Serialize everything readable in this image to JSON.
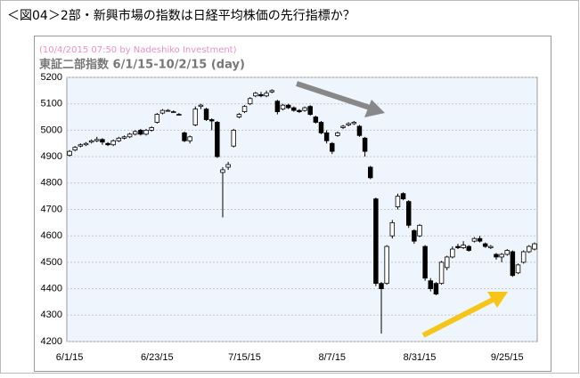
{
  "header": {
    "title": "＜図04＞2部・新興市場の指数は日経平均株価の先行指標か？"
  },
  "chart_data": {
    "type": "candlestick",
    "subtitle": "(10/4/2015 07:50 by Nadeshiko Investment)",
    "title": "東証二部指数  6/1/15-10/2/15 (day)",
    "categories": [
      "6/1/15",
      null,
      null,
      null,
      null,
      null,
      null,
      null,
      null,
      null,
      null,
      null,
      null,
      null,
      null,
      null,
      "6/23/15",
      null,
      null,
      null,
      null,
      null,
      null,
      null,
      null,
      null,
      null,
      null,
      null,
      null,
      null,
      null,
      "7/15/15",
      null,
      null,
      null,
      null,
      null,
      null,
      null,
      null,
      null,
      null,
      null,
      null,
      null,
      null,
      null,
      "8/7/15",
      null,
      null,
      null,
      null,
      null,
      null,
      null,
      null,
      null,
      null,
      null,
      null,
      null,
      null,
      null,
      "8/31/15",
      null,
      null,
      null,
      null,
      null,
      null,
      null,
      null,
      null,
      null,
      null,
      null,
      null,
      null,
      null,
      "9/25/15",
      null,
      null,
      null,
      null,
      null
    ],
    "open": [
      4905,
      4925,
      4940,
      4945,
      4955,
      4960,
      4965,
      4950,
      4945,
      4960,
      4970,
      4975,
      4985,
      5000,
      4985,
      5000,
      5030,
      5065,
      5075,
      5070,
      5060,
      4990,
      4960,
      5020,
      5090,
      5080,
      5040,
      5030,
      4840,
      4860,
      4940,
      5050,
      5070,
      5100,
      5130,
      5135,
      5130,
      5145,
      5110,
      5080,
      5095,
      5085,
      5075,
      5075,
      5090,
      5050,
      5030,
      4990,
      4950,
      4980,
      5010,
      5020,
      5025,
      5015,
      4970,
      4860,
      4740,
      4420,
      4420,
      4600,
      4710,
      4760,
      4730,
      4620,
      4600,
      4560,
      4430,
      4420,
      4420,
      4480,
      4520,
      4560,
      4555,
      4560,
      4580,
      4590,
      4570,
      4555,
      4530,
      4520,
      4530,
      4540,
      4460,
      4500,
      4540,
      4550
    ],
    "high": [
      4925,
      4940,
      4950,
      4955,
      4965,
      4975,
      4970,
      4955,
      4965,
      4975,
      4980,
      4990,
      5000,
      5005,
      5005,
      5015,
      5065,
      5080,
      5080,
      5075,
      5065,
      4995,
      4980,
      5090,
      5100,
      5085,
      5045,
      5035,
      4860,
      4880,
      5005,
      5065,
      5095,
      5125,
      5145,
      5145,
      5150,
      5155,
      5115,
      5100,
      5100,
      5090,
      5080,
      5090,
      5095,
      5055,
      5035,
      5000,
      4955,
      4995,
      5020,
      5030,
      5035,
      5020,
      4975,
      4865,
      4745,
      4425,
      4565,
      4660,
      4760,
      4765,
      4735,
      4625,
      4645,
      4565,
      4440,
      4425,
      4505,
      4525,
      4560,
      4570,
      4580,
      4565,
      4595,
      4600,
      4575,
      4565,
      4535,
      4535,
      4550,
      4545,
      4495,
      4545,
      4565,
      4575
    ],
    "low": [
      4900,
      4920,
      4935,
      4940,
      4950,
      4955,
      4945,
      4940,
      4940,
      4955,
      4965,
      4970,
      4980,
      4980,
      4980,
      4995,
      5025,
      5060,
      5070,
      5065,
      5055,
      4955,
      4950,
      5015,
      5080,
      5035,
      5000,
      4895,
      4670,
      4850,
      4935,
      5045,
      5065,
      5095,
      5125,
      5125,
      5125,
      5140,
      5060,
      5075,
      5080,
      5070,
      5065,
      5070,
      5055,
      5025,
      4985,
      4950,
      4910,
      4975,
      5005,
      5015,
      5020,
      4975,
      4900,
      4815,
      4410,
      4230,
      4415,
      4590,
      4700,
      4735,
      4630,
      4570,
      4595,
      4430,
      4390,
      4375,
      4415,
      4470,
      4515,
      4550,
      4550,
      4540,
      4575,
      4575,
      4555,
      4550,
      4510,
      4500,
      4525,
      4445,
      4455,
      4495,
      4535,
      4545
    ],
    "close": [
      4920,
      4935,
      4945,
      4950,
      4960,
      4965,
      4955,
      4945,
      4960,
      4970,
      4975,
      4985,
      4995,
      4985,
      5000,
      5010,
      5060,
      5075,
      5075,
      5070,
      5060,
      4960,
      4975,
      5080,
      5095,
      5040,
      5035,
      4900,
      4850,
      4870,
      5000,
      5060,
      5090,
      5120,
      5140,
      5130,
      5140,
      5150,
      5070,
      5095,
      5085,
      5075,
      5070,
      5085,
      5060,
      5030,
      4990,
      4960,
      4920,
      4990,
      5015,
      5025,
      5030,
      4980,
      4920,
      4820,
      4420,
      4400,
      4560,
      4650,
      4750,
      4740,
      4640,
      4580,
      4640,
      4440,
      4400,
      4380,
      4500,
      4520,
      4550,
      4555,
      4565,
      4545,
      4590,
      4580,
      4560,
      4560,
      4520,
      4530,
      4545,
      4450,
      4490,
      4540,
      4560,
      4570
    ],
    "up_color": "#ffffff",
    "down_color": "#000000",
    "ylim": [
      4200,
      5200
    ],
    "yticks": [
      4200,
      4300,
      4400,
      4500,
      4600,
      4700,
      4800,
      4900,
      5000,
      5100,
      5200
    ],
    "grid": true
  }
}
